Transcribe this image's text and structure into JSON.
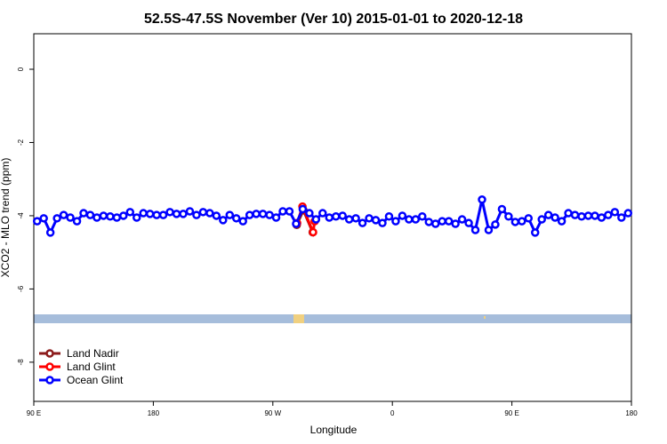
{
  "chart_data": {
    "type": "line",
    "title": "52.5S-47.5S November (Ver 10)   2015-01-01 to 2020-12-18",
    "x_label": "Longitude",
    "y_label": "XCO2 - MLO trend (ppm)",
    "xlim": [
      90,
      540
    ],
    "xticks": [
      {
        "value": 90,
        "label": "90 E"
      },
      180,
      {
        "value": 270,
        "label": "90 W"
      },
      {
        "value": 360,
        "label": "0"
      },
      {
        "value": 450,
        "label": "90 E"
      },
      {
        "value": 540,
        "label": "180"
      }
    ],
    "ylim": [
      -9.07,
      0.97
    ],
    "yticks": [
      0,
      -2,
      -4,
      -6,
      -8
    ],
    "legend": "bottom-left",
    "series": [
      {
        "name": "Land Nadir",
        "color": "#8b1a1a",
        "x": [
          288,
          293,
          300
        ],
        "values": [
          -4.25,
          -3.85,
          -4.45
        ]
      },
      {
        "name": "Land Glint",
        "color": "#ff0000",
        "x": [
          288.3,
          292.3,
          300.3,
          301.5
        ],
        "values": [
          -4.2,
          -3.75,
          -4.45,
          -4.15
        ]
      },
      {
        "name": "Ocean Glint",
        "color": "#0000ff",
        "x": [
          92.5,
          97.5,
          102.5,
          107.5,
          112.5,
          117.5,
          122.5,
          127.5,
          132.5,
          137.5,
          142.5,
          147.5,
          152.5,
          157.5,
          162.5,
          167.5,
          172.5,
          177.5,
          182.5,
          187.5,
          192.5,
          197.5,
          202.5,
          207.5,
          212.5,
          217.5,
          222.5,
          227.5,
          232.5,
          237.5,
          242.5,
          247.5,
          252.5,
          257.5,
          262.5,
          267.5,
          272.5,
          277.5,
          282.5,
          287.5,
          292.5,
          297.5,
          302.5,
          307.5,
          312.5,
          317.5,
          322.5,
          327.5,
          332.5,
          337.5,
          342.5,
          347.5,
          352.5,
          357.5,
          362.5,
          367.5,
          372.5,
          377.5,
          382.5,
          387.5,
          392.5,
          397.5,
          402.5,
          407.5,
          412.5,
          417.5,
          422.5,
          427.5,
          432.5,
          437.5,
          442.5,
          447.5,
          452.5,
          457.5,
          462.5,
          467.5,
          472.5,
          477.5,
          482.5,
          487.5,
          492.5,
          497.5,
          502.5,
          507.5,
          512.5,
          517.5,
          522.5,
          527.5,
          532.5,
          537.5
        ],
        "values": [
          -4.15,
          -4.07,
          -4.46,
          -4.07,
          -3.98,
          -4.05,
          -4.15,
          -3.93,
          -3.98,
          -4.05,
          -4.0,
          -4.02,
          -4.05,
          -4.0,
          -3.9,
          -4.05,
          -3.93,
          -3.95,
          -3.98,
          -3.98,
          -3.9,
          -3.95,
          -3.95,
          -3.88,
          -3.98,
          -3.9,
          -3.93,
          -4.0,
          -4.12,
          -3.98,
          -4.07,
          -4.15,
          -3.98,
          -3.95,
          -3.95,
          -3.98,
          -4.05,
          -3.88,
          -3.88,
          -4.22,
          -3.82,
          -3.93,
          -4.1,
          -3.93,
          -4.05,
          -4.02,
          -4.0,
          -4.1,
          -4.07,
          -4.2,
          -4.07,
          -4.12,
          -4.2,
          -4.02,
          -4.15,
          -4.0,
          -4.1,
          -4.1,
          -4.02,
          -4.17,
          -4.22,
          -4.15,
          -4.15,
          -4.22,
          -4.1,
          -4.2,
          -4.39,
          -3.56,
          -4.39,
          -4.24,
          -3.82,
          -4.02,
          -4.17,
          -4.15,
          -4.07,
          -4.46,
          -4.1,
          -3.98,
          -4.05,
          -4.15,
          -3.93,
          -3.98,
          -4.02,
          -4.0,
          -4.0,
          -4.05,
          -3.98,
          -3.9,
          -4.05,
          -3.93
        ]
      }
    ]
  }
}
